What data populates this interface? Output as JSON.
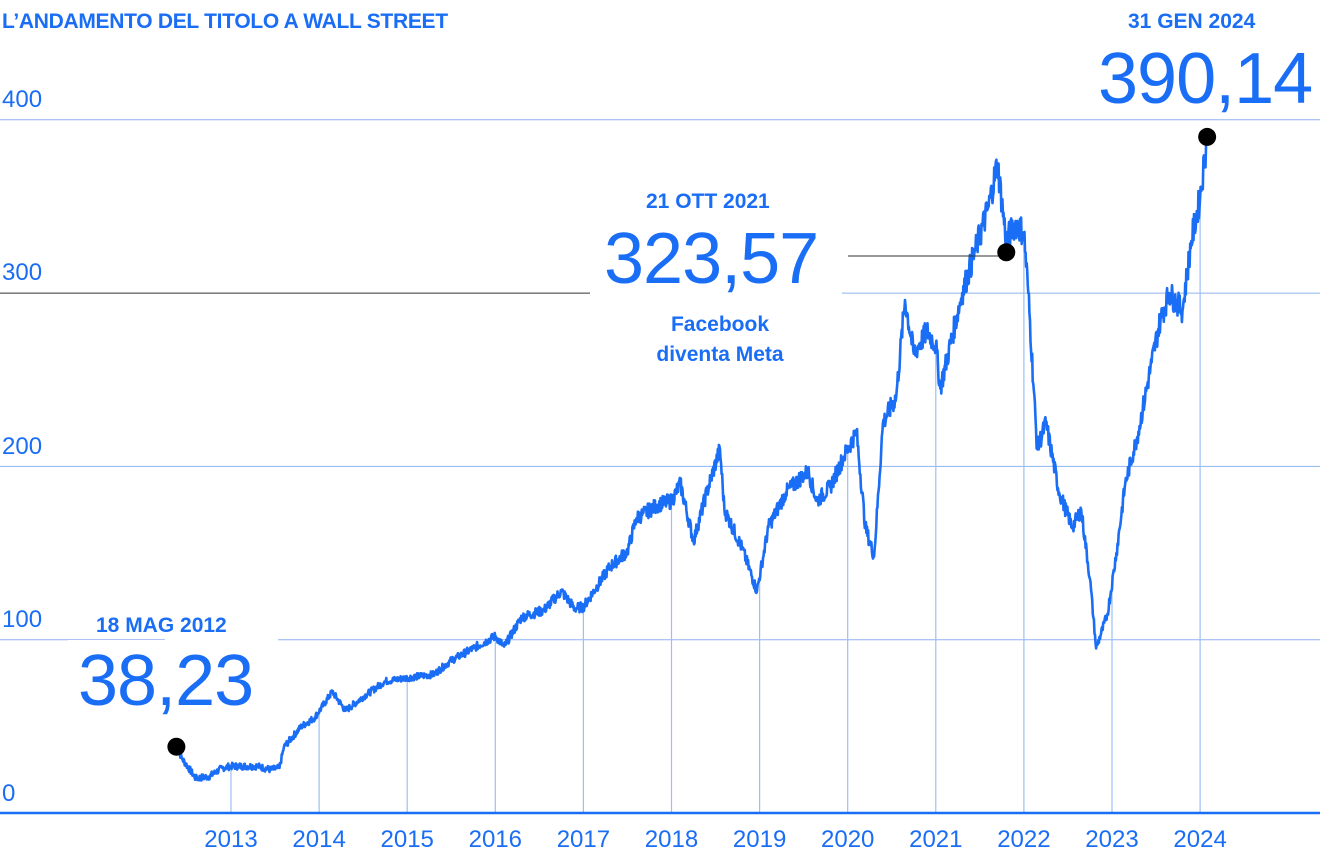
{
  "chart_data": {
    "type": "line",
    "title": "L’ANDAMENTO DEL TITOLO A WALL STREET",
    "xlabel": "",
    "ylabel": "",
    "ylim": [
      0,
      400
    ],
    "xlim": [
      2012,
      2025.3
    ],
    "grid": true,
    "y_ticks": [
      "0",
      "100",
      "200",
      "300",
      "400"
    ],
    "x_ticks": [
      "2013",
      "2014",
      "2015",
      "2016",
      "2017",
      "2018",
      "2019",
      "2020",
      "2021",
      "2022",
      "2023",
      "2024"
    ],
    "color": "#1a6df5",
    "series": [
      {
        "name": "Meta",
        "points": [
          [
            2012.38,
            38.2
          ],
          [
            2012.45,
            31
          ],
          [
            2012.6,
            20
          ],
          [
            2012.75,
            21
          ],
          [
            2012.9,
            26
          ],
          [
            2013.0,
            27
          ],
          [
            2013.3,
            27
          ],
          [
            2013.45,
            25
          ],
          [
            2013.55,
            26
          ],
          [
            2013.6,
            38
          ],
          [
            2013.8,
            50
          ],
          [
            2013.95,
            55
          ],
          [
            2014.15,
            70
          ],
          [
            2014.3,
            59
          ],
          [
            2014.5,
            67
          ],
          [
            2014.75,
            76
          ],
          [
            2015.0,
            78
          ],
          [
            2015.3,
            80
          ],
          [
            2015.5,
            88
          ],
          [
            2015.75,
            95
          ],
          [
            2016.0,
            102
          ],
          [
            2016.1,
            96
          ],
          [
            2016.3,
            113
          ],
          [
            2016.55,
            117
          ],
          [
            2016.75,
            128
          ],
          [
            2016.9,
            118
          ],
          [
            2017.0,
            119
          ],
          [
            2017.3,
            142
          ],
          [
            2017.5,
            151
          ],
          [
            2017.6,
            170
          ],
          [
            2017.85,
            178
          ],
          [
            2018.0,
            180
          ],
          [
            2018.1,
            190
          ],
          [
            2018.25,
            157
          ],
          [
            2018.4,
            185
          ],
          [
            2018.55,
            210
          ],
          [
            2018.6,
            175
          ],
          [
            2018.8,
            153
          ],
          [
            2018.97,
            128
          ],
          [
            2019.1,
            165
          ],
          [
            2019.3,
            185
          ],
          [
            2019.5,
            195
          ],
          [
            2019.55,
            197
          ],
          [
            2019.65,
            180
          ],
          [
            2019.8,
            188
          ],
          [
            2019.95,
            205
          ],
          [
            2020.1,
            220
          ],
          [
            2020.2,
            165
          ],
          [
            2020.3,
            148
          ],
          [
            2020.4,
            225
          ],
          [
            2020.55,
            240
          ],
          [
            2020.65,
            296
          ],
          [
            2020.75,
            265
          ],
          [
            2020.9,
            278
          ],
          [
            2021.0,
            270
          ],
          [
            2021.05,
            245
          ],
          [
            2021.3,
            300
          ],
          [
            2021.45,
            325
          ],
          [
            2021.6,
            350
          ],
          [
            2021.7,
            375
          ],
          [
            2021.8,
            330
          ],
          [
            2021.9,
            340
          ],
          [
            2022.0,
            335
          ],
          [
            2022.05,
            300
          ],
          [
            2022.15,
            210
          ],
          [
            2022.25,
            225
          ],
          [
            2022.4,
            185
          ],
          [
            2022.55,
            165
          ],
          [
            2022.65,
            175
          ],
          [
            2022.75,
            135
          ],
          [
            2022.82,
            95
          ],
          [
            2022.95,
            115
          ],
          [
            2023.05,
            150
          ],
          [
            2023.15,
            190
          ],
          [
            2023.3,
            220
          ],
          [
            2023.45,
            260
          ],
          [
            2023.55,
            285
          ],
          [
            2023.65,
            300
          ],
          [
            2023.8,
            290
          ],
          [
            2023.9,
            330
          ],
          [
            2024.0,
            355
          ],
          [
            2024.08,
            390.14
          ]
        ]
      }
    ],
    "annotations": [
      {
        "date": "18 MAG 2012",
        "value": "38,23",
        "x": 2012.38,
        "y": 38.23
      },
      {
        "date": "21 OTT 2021",
        "value": "323,57",
        "x": 2021.8,
        "y": 323.57,
        "note1": "Facebook",
        "note2": "diventa Meta"
      },
      {
        "date": "31 GEN 2024",
        "value": "390,14",
        "x": 2024.08,
        "y": 390.14
      }
    ]
  }
}
